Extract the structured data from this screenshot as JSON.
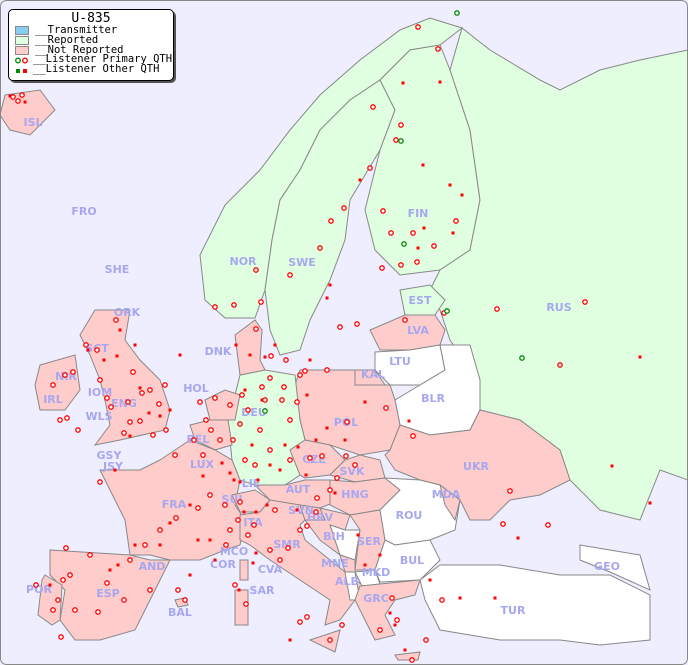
{
  "title": "U-835",
  "legend": [
    {
      "label": "__Transmitter",
      "color": "#88ccee"
    },
    {
      "label": "__Reported",
      "color": "#e0ffe0"
    },
    {
      "label": "__Not Reported",
      "color": "#ffcccc"
    },
    {
      "label": "__Listener Primary QTH",
      "symbol": "circle"
    },
    {
      "label": "__Listener Other QTH",
      "symbol": "square"
    }
  ],
  "colors": {
    "sea": "#eeeeff",
    "reported": "#e0ffe0",
    "not_reported": "#ffcccc",
    "no_data": "#ffffff",
    "border": "#888888",
    "label": "#a7a7f0",
    "listener_red": "#ff0000",
    "listener_green": "#008800"
  },
  "countries": [
    {
      "code": "ISL",
      "status": "not_reported"
    },
    {
      "code": "FRO",
      "status": "none"
    },
    {
      "code": "SHE",
      "status": "none"
    },
    {
      "code": "ORK",
      "status": "none"
    },
    {
      "code": "NOR",
      "status": "reported"
    },
    {
      "code": "SWE",
      "status": "reported"
    },
    {
      "code": "FIN",
      "status": "reported"
    },
    {
      "code": "EST",
      "status": "reported"
    },
    {
      "code": "LVA",
      "status": "not_reported"
    },
    {
      "code": "LTU",
      "status": "none"
    },
    {
      "code": "KAL",
      "status": "not_reported"
    },
    {
      "code": "BLR",
      "status": "none"
    },
    {
      "code": "RUS",
      "status": "reported"
    },
    {
      "code": "DNK",
      "status": "not_reported"
    },
    {
      "code": "SCT",
      "status": "not_reported"
    },
    {
      "code": "NIR",
      "status": "not_reported"
    },
    {
      "code": "IRL",
      "status": "not_reported"
    },
    {
      "code": "IOM",
      "status": "not_reported"
    },
    {
      "code": "WLS",
      "status": "not_reported"
    },
    {
      "code": "ENG",
      "status": "not_reported"
    },
    {
      "code": "HOL",
      "status": "not_reported"
    },
    {
      "code": "BEL",
      "status": "not_reported"
    },
    {
      "code": "DEU",
      "status": "reported"
    },
    {
      "code": "POL",
      "status": "not_reported"
    },
    {
      "code": "UKR",
      "status": "not_reported"
    },
    {
      "code": "GSY",
      "status": "not_reported"
    },
    {
      "code": "JSY",
      "status": "not_reported"
    },
    {
      "code": "LUX",
      "status": "not_reported"
    },
    {
      "code": "CZE",
      "status": "not_reported"
    },
    {
      "code": "SVK",
      "status": "not_reported"
    },
    {
      "code": "LIE",
      "status": "reported"
    },
    {
      "code": "AUT",
      "status": "not_reported"
    },
    {
      "code": "HNG",
      "status": "not_reported"
    },
    {
      "code": "MDA",
      "status": "not_reported"
    },
    {
      "code": "FRA",
      "status": "not_reported"
    },
    {
      "code": "SUI",
      "status": "not_reported"
    },
    {
      "code": "SVN",
      "status": "not_reported"
    },
    {
      "code": "HRV",
      "status": "not_reported"
    },
    {
      "code": "ROU",
      "status": "none"
    },
    {
      "code": "ITA",
      "status": "not_reported"
    },
    {
      "code": "BIH",
      "status": "none"
    },
    {
      "code": "SER",
      "status": "not_reported"
    },
    {
      "code": "SMR",
      "status": "not_reported"
    },
    {
      "code": "MCO",
      "status": "not_reported"
    },
    {
      "code": "COR",
      "status": "not_reported"
    },
    {
      "code": "CVA",
      "status": "not_reported"
    },
    {
      "code": "MNE",
      "status": "not_reported"
    },
    {
      "code": "BUL",
      "status": "none"
    },
    {
      "code": "AND",
      "status": "not_reported"
    },
    {
      "code": "ALB",
      "status": "none"
    },
    {
      "code": "MKD",
      "status": "none"
    },
    {
      "code": "GEO",
      "status": "none"
    },
    {
      "code": "SAR",
      "status": "not_reported"
    },
    {
      "code": "POR",
      "status": "not_reported"
    },
    {
      "code": "ESP",
      "status": "not_reported"
    },
    {
      "code": "GRC",
      "status": "not_reported"
    },
    {
      "code": "BAL",
      "status": "not_reported"
    },
    {
      "code": "TUR",
      "status": "none"
    }
  ]
}
